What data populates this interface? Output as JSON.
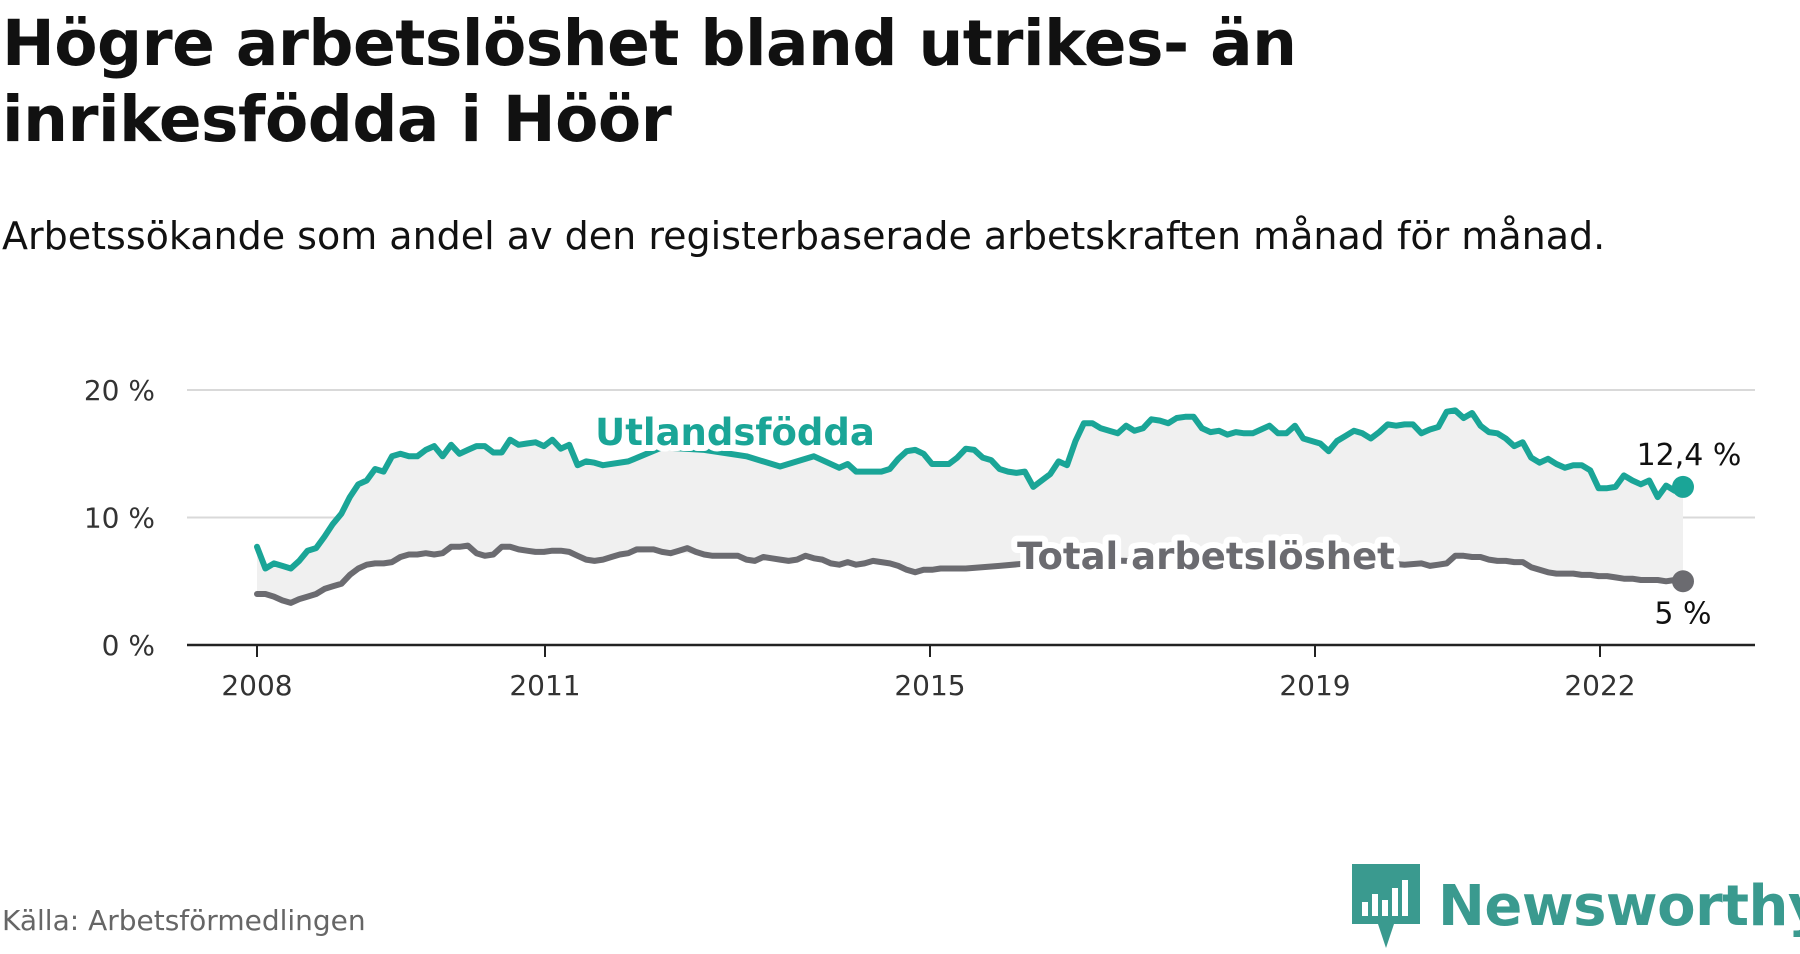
{
  "title": "Högre arbetslöshet bland utrikes- än inrikesfödda i Höör",
  "subtitle": "Arbetssökande som andel av den registerbaserade arbetskraften månad för månad.",
  "source": "Källa: Arbetsförmedlingen",
  "brand": {
    "name": "Newsworthy"
  },
  "colors": {
    "foreign": "#1aa597",
    "total": "#6b6b70",
    "band": "#f0f0f0",
    "grid": "#d9d9d9",
    "axis": "#222222",
    "brand": "#3a9a8f"
  },
  "chart_data": {
    "type": "line",
    "title": "Högre arbetslöshet bland utrikes- än inrikesfödda i Höör",
    "xlabel": "",
    "ylabel": "",
    "ylim": [
      0,
      20
    ],
    "xlim": [
      2007.25,
      2023.6
    ],
    "grid": true,
    "y_ticks": [
      {
        "value": 0,
        "label": "0 %"
      },
      {
        "value": 10,
        "label": "10 %"
      },
      {
        "value": 20,
        "label": "20 %"
      }
    ],
    "x_ticks": [
      {
        "value": 2008,
        "label": "2008"
      },
      {
        "value": 2011,
        "label": "2011"
      },
      {
        "value": 2015,
        "label": "2015"
      },
      {
        "value": 2019,
        "label": "2019"
      },
      {
        "value": 2022,
        "label": "2022"
      }
    ],
    "series": [
      {
        "name": "Utlandsfödda",
        "color_key": "foreign",
        "end_label": "12,4 %",
        "points": [
          [
            2008.0,
            7.7
          ],
          [
            2008.1,
            6.0
          ],
          [
            2008.2,
            6.4
          ],
          [
            2008.3,
            6.2
          ],
          [
            2008.4,
            6.0
          ],
          [
            2008.5,
            6.6
          ],
          [
            2008.6,
            7.4
          ],
          [
            2008.7,
            7.6
          ],
          [
            2008.8,
            8.5
          ],
          [
            2008.9,
            9.5
          ],
          [
            2009.0,
            10.3
          ],
          [
            2009.1,
            11.6
          ],
          [
            2009.2,
            12.6
          ],
          [
            2009.3,
            12.9
          ],
          [
            2009.4,
            13.8
          ],
          [
            2009.5,
            13.6
          ],
          [
            2009.6,
            14.8
          ],
          [
            2009.7,
            15.0
          ],
          [
            2009.8,
            14.8
          ],
          [
            2009.9,
            14.8
          ],
          [
            2010.0,
            15.3
          ],
          [
            2010.1,
            15.6
          ],
          [
            2010.2,
            14.8
          ],
          [
            2010.3,
            15.7
          ],
          [
            2010.4,
            15.0
          ],
          [
            2010.5,
            15.3
          ],
          [
            2010.6,
            15.6
          ],
          [
            2010.7,
            15.6
          ],
          [
            2010.8,
            15.1
          ],
          [
            2010.9,
            15.1
          ],
          [
            2011.0,
            16.1
          ],
          [
            2011.1,
            15.7
          ],
          [
            2011.2,
            15.8
          ],
          [
            2011.3,
            15.9
          ],
          [
            2011.4,
            15.6
          ],
          [
            2011.5,
            16.1
          ],
          [
            2011.6,
            15.4
          ],
          [
            2011.7,
            15.7
          ],
          [
            2011.8,
            14.1
          ],
          [
            2011.9,
            14.4
          ],
          [
            2012.0,
            14.3
          ],
          [
            2012.1,
            14.1
          ],
          [
            2012.4,
            14.4
          ],
          [
            2012.8,
            15.5
          ],
          [
            2013.3,
            15.3
          ],
          [
            2013.8,
            14.8
          ],
          [
            2014.2,
            14.0
          ],
          [
            2014.6,
            14.8
          ],
          [
            2014.9,
            13.9
          ],
          [
            2015.0,
            14.2
          ],
          [
            2015.1,
            13.6
          ],
          [
            2015.2,
            13.6
          ],
          [
            2015.3,
            13.6
          ],
          [
            2015.4,
            13.6
          ],
          [
            2015.5,
            13.8
          ],
          [
            2015.6,
            14.6
          ],
          [
            2015.7,
            15.2
          ],
          [
            2015.8,
            15.3
          ],
          [
            2015.9,
            15.0
          ],
          [
            2016.0,
            14.2
          ],
          [
            2016.1,
            14.2
          ],
          [
            2016.2,
            14.2
          ],
          [
            2016.3,
            14.7
          ],
          [
            2016.4,
            15.4
          ],
          [
            2016.5,
            15.3
          ],
          [
            2016.6,
            14.7
          ],
          [
            2016.7,
            14.5
          ],
          [
            2016.8,
            13.8
          ],
          [
            2016.9,
            13.6
          ],
          [
            2017.0,
            13.5
          ],
          [
            2017.1,
            13.6
          ],
          [
            2017.2,
            12.4
          ],
          [
            2017.3,
            12.9
          ],
          [
            2017.4,
            13.4
          ],
          [
            2017.5,
            14.4
          ],
          [
            2017.6,
            14.1
          ],
          [
            2017.7,
            16.0
          ],
          [
            2017.8,
            17.4
          ],
          [
            2017.9,
            17.4
          ],
          [
            2018.0,
            17.0
          ],
          [
            2018.1,
            16.8
          ],
          [
            2018.2,
            16.6
          ],
          [
            2018.3,
            17.2
          ],
          [
            2018.4,
            16.8
          ],
          [
            2018.5,
            17.0
          ],
          [
            2018.6,
            17.7
          ],
          [
            2018.7,
            17.6
          ],
          [
            2018.8,
            17.4
          ],
          [
            2018.9,
            17.8
          ],
          [
            2019.0,
            17.9
          ],
          [
            2019.1,
            17.9
          ],
          [
            2019.2,
            17.0
          ],
          [
            2019.3,
            16.7
          ],
          [
            2019.4,
            16.8
          ],
          [
            2019.5,
            16.5
          ],
          [
            2019.6,
            16.7
          ],
          [
            2019.7,
            16.6
          ],
          [
            2019.8,
            16.6
          ],
          [
            2019.9,
            16.9
          ],
          [
            2020.0,
            17.2
          ],
          [
            2020.1,
            16.6
          ],
          [
            2020.2,
            16.6
          ],
          [
            2020.3,
            17.2
          ],
          [
            2020.4,
            16.2
          ],
          [
            2020.5,
            16.0
          ],
          [
            2020.6,
            15.8
          ],
          [
            2020.7,
            15.2
          ],
          [
            2020.8,
            16.0
          ],
          [
            2020.9,
            16.4
          ],
          [
            2021.0,
            16.8
          ],
          [
            2021.1,
            16.6
          ],
          [
            2021.2,
            16.2
          ],
          [
            2021.3,
            16.7
          ],
          [
            2021.4,
            17.3
          ],
          [
            2021.5,
            17.2
          ],
          [
            2021.6,
            17.3
          ],
          [
            2021.7,
            17.3
          ],
          [
            2021.8,
            16.6
          ],
          [
            2021.9,
            16.9
          ],
          [
            2022.0,
            17.1
          ],
          [
            2022.1,
            18.3
          ],
          [
            2022.2,
            18.4
          ],
          [
            2022.3,
            17.8
          ],
          [
            2022.4,
            18.2
          ],
          [
            2022.5,
            17.2
          ],
          [
            2022.6,
            16.7
          ],
          [
            2022.7,
            16.6
          ],
          [
            2022.8,
            16.2
          ],
          [
            2022.9,
            15.6
          ],
          [
            2023.0,
            15.9
          ],
          [
            2023.1,
            14.7
          ],
          [
            2023.2,
            14.3
          ],
          [
            2023.3,
            14.6
          ],
          [
            2023.4,
            14.2
          ],
          [
            2023.5,
            13.9
          ],
          [
            2023.6,
            14.1
          ],
          [
            2023.7,
            14.1
          ],
          [
            2023.8,
            13.7
          ],
          [
            2023.9,
            12.3
          ],
          [
            2024.0,
            12.3
          ],
          [
            2024.1,
            12.4
          ],
          [
            2024.2,
            13.3
          ],
          [
            2024.3,
            12.9
          ],
          [
            2024.4,
            12.6
          ],
          [
            2024.5,
            12.9
          ],
          [
            2024.6,
            11.6
          ],
          [
            2024.7,
            12.5
          ],
          [
            2024.8,
            12.1
          ],
          [
            2024.9,
            12.4
          ]
        ]
      },
      {
        "name": "Total arbetslöshet",
        "color_key": "total",
        "end_label": "5 %",
        "points": [
          [
            2008.0,
            4.0
          ],
          [
            2008.1,
            4.0
          ],
          [
            2008.2,
            3.8
          ],
          [
            2008.3,
            3.5
          ],
          [
            2008.4,
            3.3
          ],
          [
            2008.5,
            3.6
          ],
          [
            2008.6,
            3.8
          ],
          [
            2008.7,
            4.0
          ],
          [
            2008.8,
            4.4
          ],
          [
            2008.9,
            4.6
          ],
          [
            2009.0,
            4.8
          ],
          [
            2009.1,
            5.5
          ],
          [
            2009.2,
            6.0
          ],
          [
            2009.3,
            6.3
          ],
          [
            2009.4,
            6.4
          ],
          [
            2009.5,
            6.4
          ],
          [
            2009.6,
            6.5
          ],
          [
            2009.7,
            6.9
          ],
          [
            2009.8,
            7.1
          ],
          [
            2009.9,
            7.1
          ],
          [
            2010.0,
            7.2
          ],
          [
            2010.1,
            7.1
          ],
          [
            2010.2,
            7.2
          ],
          [
            2010.3,
            7.7
          ],
          [
            2010.4,
            7.7
          ],
          [
            2010.5,
            7.8
          ],
          [
            2010.6,
            7.2
          ],
          [
            2010.7,
            7.0
          ],
          [
            2010.8,
            7.1
          ],
          [
            2010.9,
            7.7
          ],
          [
            2011.0,
            7.7
          ],
          [
            2011.1,
            7.5
          ],
          [
            2011.2,
            7.4
          ],
          [
            2011.3,
            7.3
          ],
          [
            2011.4,
            7.3
          ],
          [
            2011.5,
            7.4
          ],
          [
            2011.6,
            7.4
          ],
          [
            2011.7,
            7.3
          ],
          [
            2011.8,
            7.0
          ],
          [
            2011.9,
            6.7
          ],
          [
            2012.0,
            6.6
          ],
          [
            2012.1,
            6.7
          ],
          [
            2012.2,
            6.9
          ],
          [
            2012.3,
            7.1
          ],
          [
            2012.4,
            7.2
          ],
          [
            2012.5,
            7.5
          ],
          [
            2012.6,
            7.5
          ],
          [
            2012.7,
            7.5
          ],
          [
            2012.8,
            7.3
          ],
          [
            2012.9,
            7.2
          ],
          [
            2013.0,
            7.4
          ],
          [
            2013.1,
            7.6
          ],
          [
            2013.2,
            7.3
          ],
          [
            2013.3,
            7.1
          ],
          [
            2013.4,
            7.0
          ],
          [
            2013.5,
            7.0
          ],
          [
            2013.6,
            7.0
          ],
          [
            2013.7,
            7.0
          ],
          [
            2013.8,
            6.7
          ],
          [
            2013.9,
            6.6
          ],
          [
            2014.0,
            6.9
          ],
          [
            2014.1,
            6.8
          ],
          [
            2014.2,
            6.7
          ],
          [
            2014.3,
            6.6
          ],
          [
            2014.4,
            6.7
          ],
          [
            2014.5,
            7.0
          ],
          [
            2014.6,
            6.8
          ],
          [
            2014.7,
            6.7
          ],
          [
            2014.8,
            6.4
          ],
          [
            2014.9,
            6.3
          ],
          [
            2015.0,
            6.5
          ],
          [
            2015.1,
            6.3
          ],
          [
            2015.2,
            6.4
          ],
          [
            2015.3,
            6.6
          ],
          [
            2015.4,
            6.5
          ],
          [
            2015.5,
            6.4
          ],
          [
            2015.6,
            6.2
          ],
          [
            2015.7,
            5.9
          ],
          [
            2015.8,
            5.7
          ],
          [
            2015.9,
            5.9
          ],
          [
            2016.0,
            5.9
          ],
          [
            2016.1,
            6.0
          ],
          [
            2016.2,
            6.0
          ],
          [
            2016.4,
            6.0
          ],
          [
            2016.8,
            6.2
          ],
          [
            2017.3,
            6.5
          ],
          [
            2017.8,
            6.7
          ],
          [
            2018.3,
            6.6
          ],
          [
            2018.8,
            6.3
          ],
          [
            2019.3,
            6.2
          ],
          [
            2019.8,
            6.1
          ],
          [
            2020.3,
            6.3
          ],
          [
            2020.8,
            6.6
          ],
          [
            2021.2,
            6.5
          ],
          [
            2021.6,
            6.3
          ],
          [
            2021.8,
            6.4
          ],
          [
            2021.9,
            6.2
          ],
          [
            2022.0,
            6.3
          ],
          [
            2022.1,
            6.4
          ],
          [
            2022.2,
            7.0
          ],
          [
            2022.3,
            7.0
          ],
          [
            2022.4,
            6.9
          ],
          [
            2022.5,
            6.9
          ],
          [
            2022.6,
            6.7
          ],
          [
            2022.7,
            6.6
          ],
          [
            2022.8,
            6.6
          ],
          [
            2022.9,
            6.5
          ],
          [
            2023.0,
            6.5
          ],
          [
            2023.1,
            6.1
          ],
          [
            2023.2,
            5.9
          ],
          [
            2023.3,
            5.7
          ],
          [
            2023.4,
            5.6
          ],
          [
            2023.5,
            5.6
          ],
          [
            2023.6,
            5.6
          ],
          [
            2023.7,
            5.5
          ],
          [
            2023.8,
            5.5
          ],
          [
            2023.9,
            5.4
          ],
          [
            2024.0,
            5.4
          ],
          [
            2024.1,
            5.3
          ],
          [
            2024.2,
            5.2
          ],
          [
            2024.3,
            5.2
          ],
          [
            2024.4,
            5.1
          ],
          [
            2024.5,
            5.1
          ],
          [
            2024.6,
            5.1
          ],
          [
            2024.7,
            5.0
          ],
          [
            2024.8,
            5.1
          ],
          [
            2024.9,
            5.0
          ]
        ]
      }
    ]
  }
}
